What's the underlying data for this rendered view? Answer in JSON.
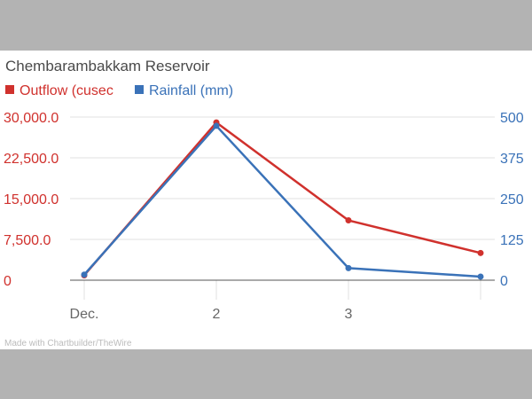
{
  "chart_data": {
    "type": "line",
    "title": "Chembarambakkam Reservoir",
    "categories": [
      "Dec.",
      "2",
      "3",
      ""
    ],
    "series": [
      {
        "name": "Outflow (cusec",
        "axis": "left",
        "color": "#d0312d",
        "values": [
          900,
          29000,
          11000,
          5000
        ]
      },
      {
        "name": "Rainfall (mm)",
        "axis": "right",
        "color": "#3a72b8",
        "values": [
          17,
          473,
          37,
          11
        ]
      }
    ],
    "y_left": {
      "ylim": [
        0,
        30000
      ],
      "ticks": [
        0,
        7500,
        15000,
        22500,
        30000
      ],
      "tick_labels": [
        "0",
        "7,500.0",
        "15,000.0",
        "22,500.0",
        "30,000.0"
      ],
      "color": "#d0312d"
    },
    "y_right": {
      "ylim": [
        0,
        500
      ],
      "ticks": [
        0,
        125,
        250,
        375,
        500
      ],
      "tick_labels": [
        "0",
        "125",
        "250",
        "375",
        "500"
      ],
      "color": "#3a72b8"
    },
    "grid": true,
    "legend_position": "top-left"
  },
  "footer": {
    "credit": "Made with Chartbuilder/TheWire"
  }
}
